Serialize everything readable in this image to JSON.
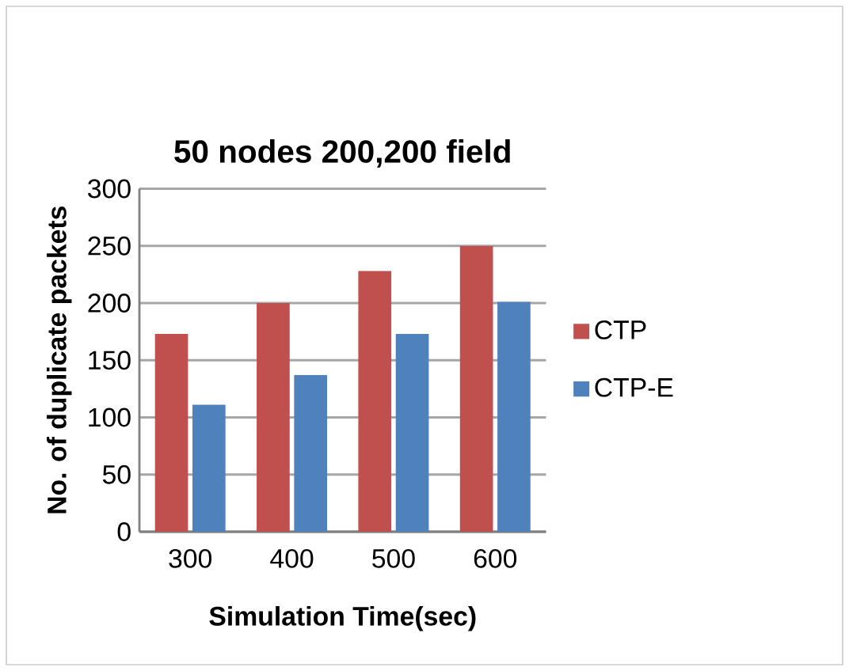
{
  "chart_data": {
    "type": "bar",
    "title": "50 nodes 200,200 field",
    "xlabel": "Simulation Time(sec)",
    "ylabel": "No. of duplicate packets",
    "categories": [
      "300",
      "400",
      "500",
      "600"
    ],
    "series": [
      {
        "name": "CTP",
        "color": "#c0504d",
        "values": [
          173,
          200,
          228,
          250
        ]
      },
      {
        "name": "CTP-E",
        "color": "#4f81bd",
        "values": [
          111,
          137,
          173,
          201
        ]
      }
    ],
    "ylim": [
      0,
      300
    ],
    "yticks": [
      0,
      50,
      100,
      150,
      200,
      250,
      300
    ],
    "grid": "y",
    "legend": "right"
  }
}
